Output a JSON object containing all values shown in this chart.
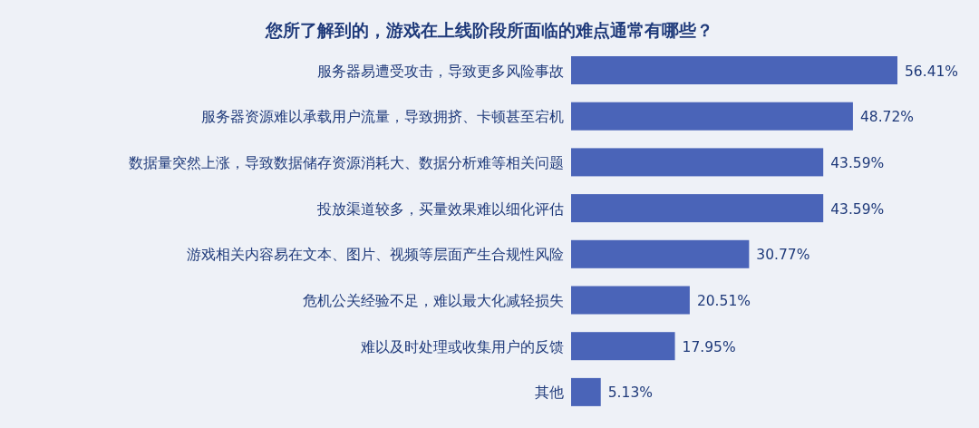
{
  "chart_data": {
    "type": "bar",
    "orientation": "horizontal",
    "title": "您所了解到的，游戏在上线阶段所面临的难点通常有哪些？",
    "categories": [
      "服务器易遭受攻击，导致更多风险事故",
      "服务器资源难以承载用户流量，导致拥挤、卡顿甚至宕机",
      "数据量突然上涨，导致数据储存资源消耗大、数据分析难等相关问题",
      "投放渠道较多，买量效果难以细化评估",
      "游戏相关内容易在文本、图片、视频等层面产生合规性风险",
      "危机公关经验不足，难以最大化减轻损失",
      "难以及时处理或收集用户的反馈",
      "其他"
    ],
    "values": [
      56.41,
      48.72,
      43.59,
      43.59,
      30.77,
      20.51,
      17.95,
      5.13
    ],
    "value_labels": [
      "56.41%",
      "48.72%",
      "43.59%",
      "43.59%",
      "30.77%",
      "20.51%",
      "17.95%",
      "5.13%"
    ],
    "color": "#4a64b8"
  }
}
